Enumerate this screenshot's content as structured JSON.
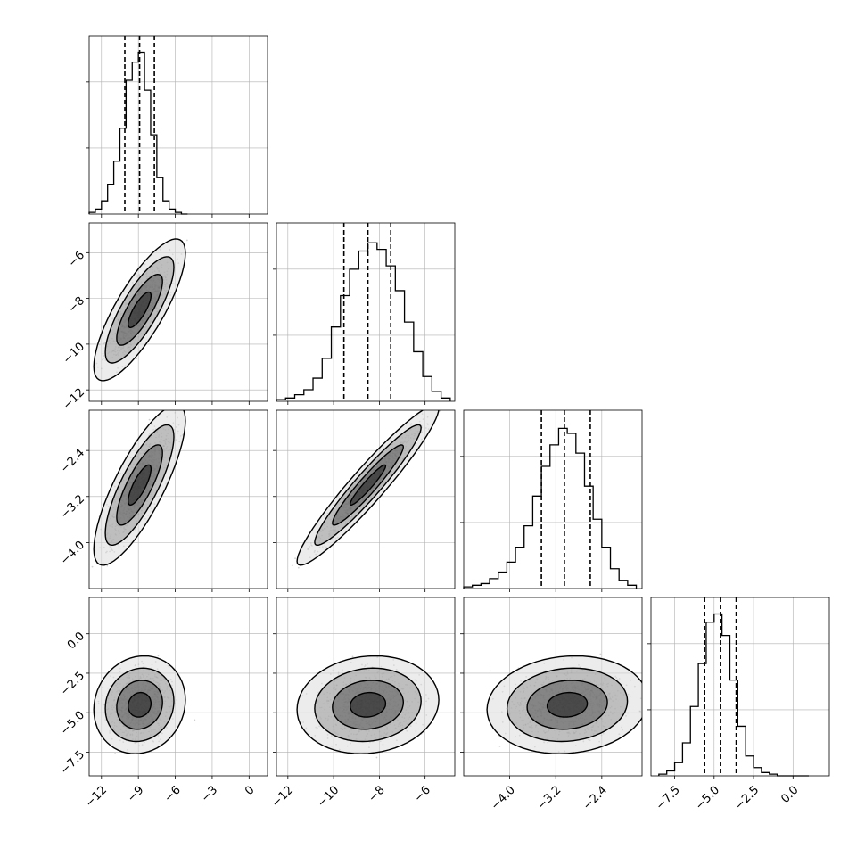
{
  "chart_data": {
    "type": "scatter",
    "description_free": true,
    "parameters": [
      {
        "id": "p0",
        "range": [
          -13,
          1.5
        ],
        "ticks": [
          -12,
          -9,
          -6,
          -3,
          0
        ],
        "tick_labels": [
          "−12",
          "−9",
          "−6",
          "−3",
          "0"
        ],
        "mean": -8.9,
        "sd": 1.2,
        "q16": -10.1,
        "q50": -8.9,
        "q84": -7.7
      },
      {
        "id": "p1",
        "range": [
          -12.5,
          -4.7
        ],
        "ticks": [
          -12,
          -10,
          -8,
          -6
        ],
        "tick_labels": [
          "−12",
          "−10",
          "−8",
          "−6"
        ],
        "mean": -8.5,
        "sd": 1.0,
        "q16": -9.55,
        "q50": -8.5,
        "q84": -7.5
      },
      {
        "id": "p2",
        "range": [
          -4.8,
          -1.7
        ],
        "ticks": [
          -4.0,
          -3.2,
          -2.4
        ],
        "tick_labels": [
          "−4.0",
          "−3.2",
          "−2.4"
        ],
        "mean": -3.0,
        "sd": 0.45,
        "q16": -3.45,
        "q50": -3.05,
        "q84": -2.6
      },
      {
        "id": "p3",
        "range": [
          -9,
          2.3
        ],
        "ticks": [
          -7.5,
          -5.0,
          -2.5,
          0.0
        ],
        "tick_labels": [
          "−7.5",
          "−5.0",
          "−2.5",
          "0.0"
        ],
        "mean": -4.5,
        "sd": 1.0,
        "q16": -5.6,
        "q50": -4.6,
        "q84": -3.6
      }
    ],
    "correlations": [
      {
        "pair": [
          0,
          1
        ],
        "rho": 0.8
      },
      {
        "pair": [
          0,
          2
        ],
        "rho": 0.8
      },
      {
        "pair": [
          1,
          2
        ],
        "rho": 0.95
      },
      {
        "pair": [
          0,
          3
        ],
        "rho": 0.1
      },
      {
        "pair": [
          1,
          3
        ],
        "rho": 0.1
      },
      {
        "pair": [
          2,
          3
        ],
        "rho": 0.1
      }
    ],
    "histograms": [
      {
        "param": 0,
        "ymax": 1.0,
        "edges": [
          -13,
          -12.5,
          -12,
          -11.5,
          -11,
          -10.5,
          -10,
          -9.5,
          -9,
          -8.5,
          -8,
          -7.5,
          -7,
          -6.5,
          -6,
          -5.5,
          -5
        ],
        "counts": [
          0.01,
          0.03,
          0.08,
          0.18,
          0.32,
          0.52,
          0.81,
          0.92,
          0.98,
          0.75,
          0.48,
          0.22,
          0.08,
          0.03,
          0.01,
          0.0
        ]
      },
      {
        "param": 1,
        "ymax": 1.0,
        "edges": [
          -12.5,
          -12.1,
          -11.7,
          -11.3,
          -10.9,
          -10.5,
          -10.1,
          -9.7,
          -9.3,
          -8.9,
          -8.5,
          -8.1,
          -7.7,
          -7.3,
          -6.9,
          -6.5,
          -6.1,
          -5.7,
          -5.3,
          -4.9
        ],
        "counts": [
          0.01,
          0.02,
          0.04,
          0.07,
          0.14,
          0.26,
          0.45,
          0.64,
          0.8,
          0.91,
          0.96,
          0.92,
          0.82,
          0.67,
          0.48,
          0.3,
          0.15,
          0.06,
          0.02
        ]
      },
      {
        "param": 2,
        "ymax": 1.0,
        "edges": [
          -4.8,
          -4.65,
          -4.5,
          -4.35,
          -4.2,
          -4.05,
          -3.9,
          -3.75,
          -3.6,
          -3.45,
          -3.3,
          -3.15,
          -3.0,
          -2.85,
          -2.7,
          -2.55,
          -2.4,
          -2.25,
          -2.1,
          -1.95,
          -1.8
        ],
        "counts": [
          0.01,
          0.02,
          0.03,
          0.06,
          0.1,
          0.16,
          0.25,
          0.38,
          0.56,
          0.74,
          0.87,
          0.97,
          0.94,
          0.82,
          0.62,
          0.42,
          0.25,
          0.12,
          0.05,
          0.02
        ]
      },
      {
        "param": 3,
        "ymax": 1.0,
        "edges": [
          -8.5,
          -8,
          -7.5,
          -7,
          -6.5,
          -6,
          -5.5,
          -5,
          -4.5,
          -4,
          -3.5,
          -3,
          -2.5,
          -2,
          -1.5,
          -1,
          -0.5,
          0,
          0.5,
          1
        ],
        "counts": [
          0.01,
          0.03,
          0.08,
          0.2,
          0.42,
          0.68,
          0.93,
          0.98,
          0.85,
          0.58,
          0.3,
          0.12,
          0.05,
          0.02,
          0.01,
          0.0,
          0.0,
          0.0,
          0.0
        ]
      }
    ],
    "contour_levels_sigma": [
      0.5,
      1.0,
      1.5,
      2.0
    ],
    "grid": true,
    "legend": "none"
  }
}
